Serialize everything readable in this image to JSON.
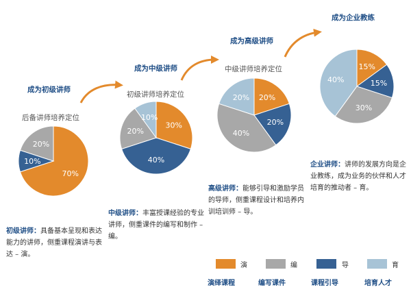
{
  "colors": {
    "orange": "#e38a2c",
    "gray": "#a8a8a8",
    "navy": "#366193",
    "light_blue": "#a7c3d6",
    "title_blue": "#1f4e86"
  },
  "stages": [
    {
      "title": "成为初级讲师",
      "pie_label": "后备讲师培养定位",
      "description": {
        "keyword": "初级讲师：",
        "text": "具备基本呈现和表达能力的讲师，侧重课程演讲与表达 – 演。"
      },
      "slices": [
        {
          "label": "70%",
          "value": 70,
          "color": "#e38a2c"
        },
        {
          "label": "10%",
          "value": 10,
          "color": "#366193"
        },
        {
          "label": "20%",
          "value": 20,
          "color": "#a8a8a8"
        }
      ]
    },
    {
      "title": "成为中级讲师",
      "pie_label": "初级讲师培养定位",
      "description": {
        "keyword": "中级讲师：",
        "text": "丰富授课经验的专业讲师，侧重课件的编写和制作 – 编。"
      },
      "slices": [
        {
          "label": "30%",
          "value": 30,
          "color": "#e38a2c"
        },
        {
          "label": "40%",
          "value": 40,
          "color": "#366193"
        },
        {
          "label": "20%",
          "value": 20,
          "color": "#a8a8a8"
        },
        {
          "label": "10%",
          "value": 10,
          "color": "#a7c3d6"
        }
      ]
    },
    {
      "title": "成为高级讲师",
      "pie_label": "中级讲师培养定位",
      "description": {
        "keyword": "高级讲师：",
        "text": "能够引导和激励学员的导师，侧重课程设计和培养内训培训师 – 导。"
      },
      "slices": [
        {
          "label": "20%",
          "value": 20,
          "color": "#e38a2c"
        },
        {
          "label": "20%",
          "value": 20,
          "color": "#366193"
        },
        {
          "label": "40%",
          "value": 40,
          "color": "#a8a8a8"
        },
        {
          "label": "20%",
          "value": 20,
          "color": "#a7c3d6"
        }
      ]
    },
    {
      "title": "成为企业教练",
      "pie_label": "",
      "description": {
        "keyword": "企业讲师：",
        "text": "讲师的发展方向是企业教练，成为业务的伙伴和人才培育的推动者 – 育。"
      },
      "slices": [
        {
          "label": "15%",
          "value": 15,
          "color": "#e38a2c"
        },
        {
          "label": "15%",
          "value": 15,
          "color": "#366193"
        },
        {
          "label": "30%",
          "value": 30,
          "color": "#a8a8a8"
        },
        {
          "label": "40%",
          "value": 40,
          "color": "#a7c3d6"
        }
      ]
    }
  ],
  "legend": [
    {
      "char": "演",
      "name": "演绎课程",
      "color": "#e38a2c"
    },
    {
      "char": "编",
      "name": "编写课件",
      "color": "#a8a8a8"
    },
    {
      "char": "导",
      "name": "课程引导",
      "color": "#366193"
    },
    {
      "char": "育",
      "name": "培育人才",
      "color": "#a7c3d6"
    }
  ]
}
